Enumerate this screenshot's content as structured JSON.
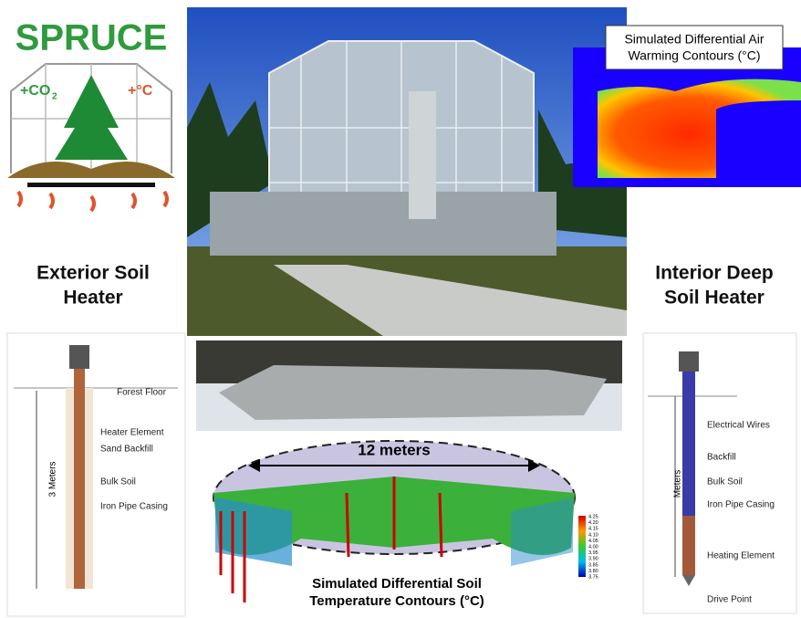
{
  "logo": {
    "title": "SPRUCE",
    "co2": "+CO",
    "co2_sub": "2",
    "temp": "+°C"
  },
  "exterior_label": [
    "Exterior Soil",
    "Heater"
  ],
  "interior_label": [
    "Interior Deep",
    "Soil Heater"
  ],
  "air_contours": {
    "title": [
      "Simulated Differential Air",
      "Warming Contours (°C)"
    ]
  },
  "exterior_diagram": {
    "depth": "3 Meters",
    "labels": [
      "Forest Floor",
      "Heater Element",
      "Sand Backfill",
      "Bulk Soil",
      "Iron Pipe Casing"
    ]
  },
  "interior_diagram": {
    "depth": "Meters",
    "labels": [
      "Electrical Wires",
      "Backfill",
      "Bulk Soil",
      "Iron Pipe Casing",
      "Heating Element",
      "Drive Point"
    ]
  },
  "soil_contours": {
    "span": "12 meters",
    "colorbar": [
      "4.25",
      "4.20",
      "4.15",
      "4.10",
      "4.05",
      "4.00",
      "3.95",
      "3.90",
      "3.85",
      "3.80",
      "3.75"
    ],
    "caption": [
      "Simulated Differential Soil",
      "Temperature Contours (°C)"
    ]
  }
}
